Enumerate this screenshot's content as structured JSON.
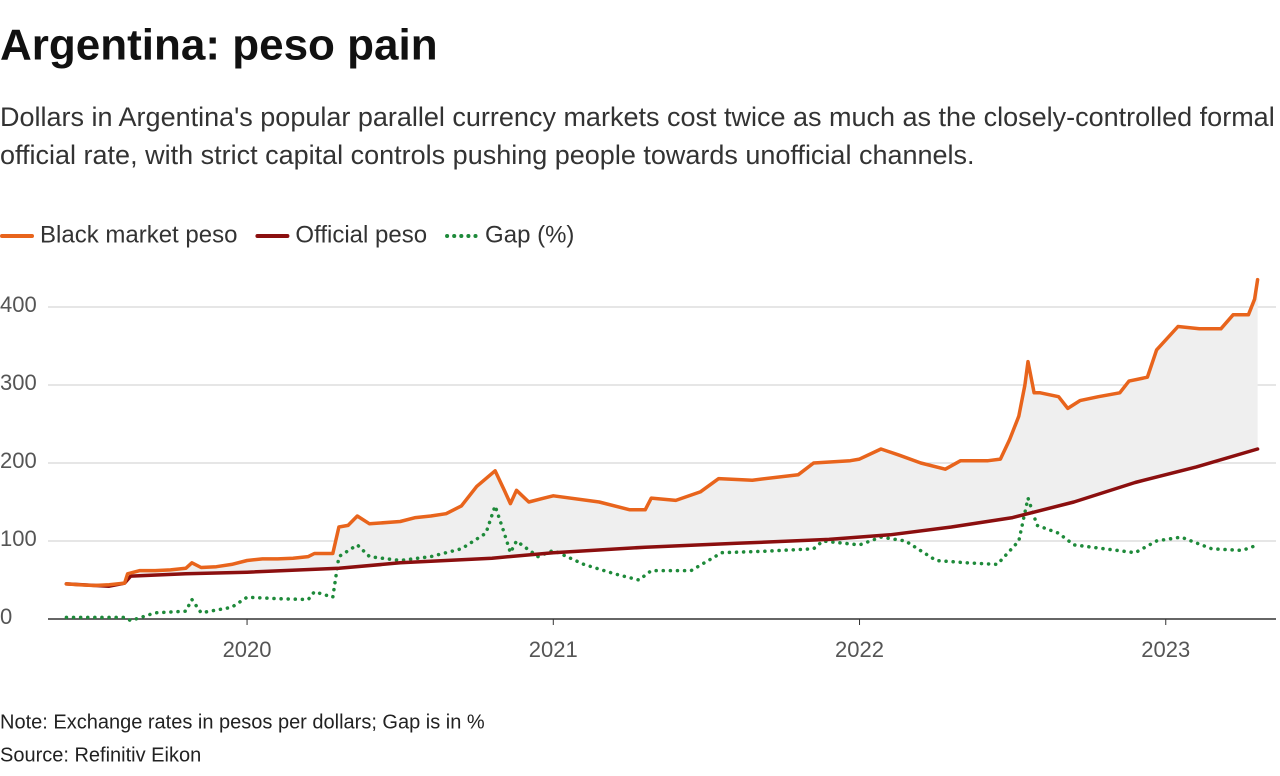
{
  "chart_data": {
    "type": "line",
    "title": "Argentina: peso pain",
    "subtitle": "Dollars in Argentina's popular parallel currency markets cost twice as much as the closely-controlled formal official rate, with strict capital controls pushing people towards unofficial channels.",
    "note": "Note: Exchange rates in pesos per dollars; Gap is in %",
    "source": "Source: Refinitiv Eikon",
    "xlim": [
      2019.35,
      2023.36
    ],
    "xticks": [
      2020,
      2021,
      2022,
      2023
    ],
    "ylim": [
      0,
      450
    ],
    "yticks": [
      0,
      100,
      200,
      300,
      400
    ],
    "grid": true,
    "legend": "top-left",
    "series": [
      {
        "name": "Black market peso",
        "color": "#e8641c",
        "style": "solid",
        "x": [
          2019.41,
          2019.45,
          2019.5,
          2019.55,
          2019.6,
          2019.61,
          2019.65,
          2019.7,
          2019.75,
          2019.8,
          2019.82,
          2019.85,
          2019.9,
          2019.95,
          2020.0,
          2020.05,
          2020.1,
          2020.15,
          2020.2,
          2020.22,
          2020.28,
          2020.3,
          2020.33,
          2020.36,
          2020.4,
          2020.5,
          2020.55,
          2020.6,
          2020.65,
          2020.7,
          2020.75,
          2020.81,
          2020.84,
          2020.86,
          2020.88,
          2020.92,
          2020.97,
          2021.0,
          2021.15,
          2021.25,
          2021.3,
          2021.32,
          2021.4,
          2021.48,
          2021.54,
          2021.65,
          2021.8,
          2021.85,
          2021.97,
          2022.0,
          2022.07,
          2022.13,
          2022.2,
          2022.28,
          2022.33,
          2022.42,
          2022.46,
          2022.49,
          2022.52,
          2022.54,
          2022.55,
          2022.57,
          2022.59,
          2022.65,
          2022.68,
          2022.72,
          2022.78,
          2022.85,
          2022.88,
          2022.94,
          2022.97,
          2023.04,
          2023.11,
          2023.18,
          2023.22,
          2023.27,
          2023.29,
          2023.3
        ],
        "values": [
          45,
          44,
          43,
          44,
          46,
          58,
          62,
          62,
          63,
          65,
          72,
          66,
          67,
          70,
          75,
          77,
          77,
          78,
          80,
          84,
          84,
          118,
          120,
          132,
          122,
          125,
          130,
          132,
          135,
          145,
          170,
          190,
          165,
          148,
          165,
          150,
          155,
          158,
          150,
          140,
          140,
          155,
          152,
          163,
          180,
          178,
          185,
          200,
          203,
          205,
          218,
          210,
          200,
          192,
          203,
          203,
          205,
          230,
          260,
          300,
          330,
          290,
          290,
          285,
          270,
          280,
          285,
          290,
          305,
          310,
          345,
          375,
          372,
          372,
          390,
          390,
          410,
          435
        ]
      },
      {
        "name": "Official peso",
        "color": "#8b0f0f",
        "style": "solid",
        "x": [
          2019.41,
          2019.55,
          2019.6,
          2019.62,
          2019.8,
          2020.0,
          2020.3,
          2020.5,
          2020.8,
          2021.0,
          2021.3,
          2021.6,
          2021.9,
          2022.1,
          2022.3,
          2022.5,
          2022.7,
          2022.9,
          2023.1,
          2023.3
        ],
        "values": [
          45,
          42,
          46,
          55,
          58,
          60,
          65,
          72,
          78,
          85,
          92,
          97,
          102,
          108,
          118,
          130,
          150,
          175,
          195,
          218
        ]
      },
      {
        "name": "Gap (%)",
        "color": "#1e8a3a",
        "style": "dotted",
        "x": [
          2019.41,
          2019.6,
          2019.62,
          2019.7,
          2019.8,
          2019.82,
          2019.85,
          2019.95,
          2020.0,
          2020.1,
          2020.2,
          2020.22,
          2020.28,
          2020.3,
          2020.36,
          2020.4,
          2020.5,
          2020.6,
          2020.7,
          2020.78,
          2020.81,
          2020.84,
          2020.86,
          2020.88,
          2020.95,
          2021.0,
          2021.1,
          2021.2,
          2021.28,
          2021.32,
          2021.45,
          2021.55,
          2021.7,
          2021.85,
          2021.88,
          2022.0,
          2022.07,
          2022.15,
          2022.25,
          2022.35,
          2022.45,
          2022.52,
          2022.55,
          2022.58,
          2022.65,
          2022.7,
          2022.8,
          2022.9,
          2022.97,
          2023.05,
          2023.15,
          2023.25,
          2023.3
        ],
        "values": [
          2,
          2,
          -2,
          8,
          10,
          25,
          8,
          15,
          28,
          26,
          25,
          35,
          28,
          80,
          95,
          80,
          75,
          80,
          90,
          110,
          145,
          110,
          85,
          100,
          80,
          88,
          70,
          58,
          50,
          62,
          62,
          85,
          87,
          90,
          100,
          95,
          105,
          100,
          75,
          72,
          70,
          100,
          155,
          120,
          110,
          95,
          90,
          85,
          100,
          105,
          90,
          88,
          95
        ]
      }
    ]
  }
}
